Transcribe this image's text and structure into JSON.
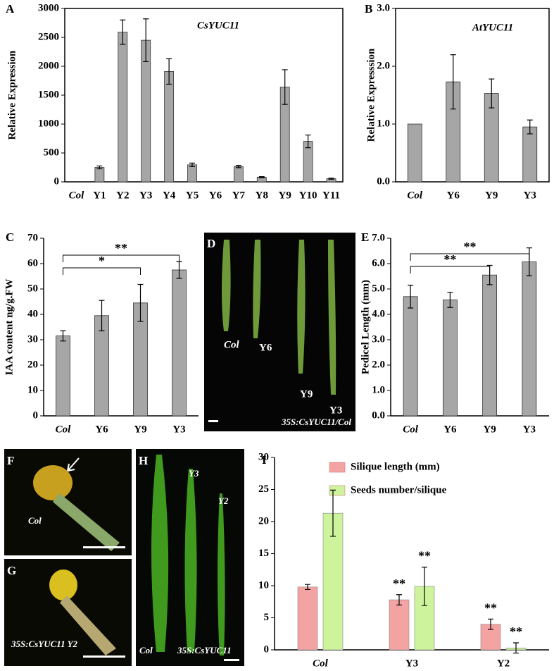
{
  "chart_data": [
    {
      "type": "bar",
      "panel": "A",
      "title": "CsYUC11",
      "ylabel": "Relative Expression",
      "categories": [
        "Col",
        "Y1",
        "Y2",
        "Y3",
        "Y4",
        "Y5",
        "Y6",
        "Y7",
        "Y8",
        "Y9",
        "Y10",
        "Y11"
      ],
      "values": [
        0,
        250,
        2590,
        2450,
        1910,
        295,
        0,
        265,
        80,
        1640,
        700,
        55
      ],
      "errors": [
        null,
        25,
        210,
        370,
        220,
        30,
        null,
        20,
        10,
        300,
        110,
        10
      ],
      "color": "#a6a6a6",
      "ylim": [
        0,
        3000
      ],
      "yticks": [
        0,
        500,
        1000,
        1500,
        2000,
        2500,
        3000
      ]
    },
    {
      "type": "bar",
      "panel": "B",
      "title": "AtYUC11",
      "ylabel": "Relative Expresssion",
      "categories": [
        "Col",
        "Y6",
        "Y9",
        "Y3"
      ],
      "values": [
        1.0,
        1.73,
        1.53,
        0.95
      ],
      "errors": [
        null,
        0.47,
        0.25,
        0.12
      ],
      "color": "#a6a6a6",
      "ylim": [
        0,
        3
      ],
      "yticks": [
        {
          "value": 0,
          "label": "0.0"
        },
        {
          "value": 1,
          "label": "1.0"
        },
        {
          "value": 2,
          "label": "2.0"
        },
        {
          "value": 3,
          "label": "3.0"
        }
      ]
    },
    {
      "type": "bar",
      "panel": "C",
      "ylabel": "IAA content ng/g.FW",
      "categories": [
        "Col",
        "Y6",
        "Y9",
        "Y3"
      ],
      "values": [
        31.5,
        39.5,
        44.5,
        57.5
      ],
      "errors": [
        2,
        6,
        7.3,
        3.3
      ],
      "color": "#a6a6a6",
      "ylim": [
        0,
        70
      ],
      "yticks": [
        0,
        10,
        20,
        30,
        40,
        50,
        60,
        70
      ],
      "annotations": [
        "**",
        "*"
      ]
    },
    {
      "type": "bar",
      "panel": "E",
      "ylabel": "Pedicel Length (mm)",
      "categories": [
        "Col",
        "Y6",
        "Y9",
        "Y3"
      ],
      "values": [
        4.7,
        4.57,
        5.55,
        6.07
      ],
      "errors": [
        0.45,
        0.3,
        0.38,
        0.55
      ],
      "color": "#a6a6a6",
      "ylim": [
        0,
        7
      ],
      "yticks": [
        {
          "value": 0,
          "label": "0.0"
        },
        {
          "value": 1,
          "label": "1.0"
        },
        {
          "value": 2,
          "label": "2.0"
        },
        {
          "value": 3,
          "label": "3.0"
        },
        {
          "value": 4,
          "label": "4.0"
        },
        {
          "value": 5,
          "label": "5.0"
        },
        {
          "value": 6,
          "label": "6.0"
        },
        {
          "value": 7,
          "label": "7.0"
        }
      ],
      "annotations": [
        "**",
        "**"
      ]
    },
    {
      "type": "grouped_bar",
      "panel": "I",
      "categories": [
        "Col",
        "Y3",
        "Y2"
      ],
      "series": [
        {
          "name": "Silique length (mm)",
          "color": "#f4a3a3",
          "values": [
            9.8,
            7.8,
            4.0
          ],
          "errors": [
            0.4,
            0.8,
            0.8
          ]
        },
        {
          "name": "Seeds number/silique",
          "color": "#cdf39c",
          "values": [
            21.3,
            9.9,
            0.3
          ],
          "errors": [
            3.6,
            3.0,
            0.8
          ]
        }
      ],
      "ylim": [
        0,
        30
      ],
      "yticks": [
        0,
        5,
        10,
        15,
        20,
        25,
        30
      ],
      "annotations": [
        "**",
        "**",
        "**",
        "**"
      ]
    }
  ],
  "photos": [
    {
      "panel": "D",
      "labels": [
        "Col",
        "Y6",
        "Y9",
        "Y3",
        "35S:CsYUC11/Col"
      ]
    },
    {
      "panel": "F",
      "labels": [
        "Col"
      ]
    },
    {
      "panel": "G",
      "labels": [
        "35S:CsYUC11  Y2"
      ]
    },
    {
      "panel": "H",
      "labels": [
        "Y3",
        "Y2",
        "Col",
        "35S:CsYUC11"
      ]
    }
  ]
}
